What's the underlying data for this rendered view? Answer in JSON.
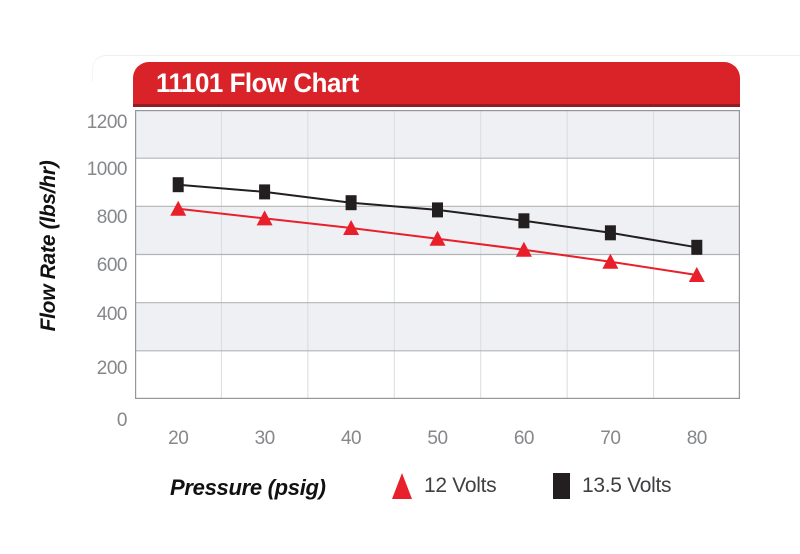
{
  "header": {
    "title": "11101 Flow Chart"
  },
  "colors": {
    "header_red": "#d92328",
    "header_red_dark": "#8c1f28",
    "series_red": "#e8202b",
    "series_black": "#231f20",
    "band_gray": "#eef0f3",
    "grid_major": "#b2b5b8",
    "grid_vertical": "#d9dcdf",
    "frame": "#94979b",
    "tick_text": "#85878a",
    "legend_text": "#3f4042"
  },
  "y_axis": {
    "title": "Flow Rate (lbs/hr)",
    "ticks": [
      "1200",
      "1000",
      "800",
      "600",
      "400",
      "200",
      "0"
    ]
  },
  "x_axis": {
    "title": "Pressure (psig)",
    "ticks": [
      "20",
      "30",
      "40",
      "50",
      "60",
      "70",
      "80"
    ]
  },
  "legend": [
    {
      "label": "12 Volts",
      "marker": "triangle",
      "color": "#e8202b"
    },
    {
      "label": "13.5 Volts",
      "marker": "square",
      "color": "#231f20"
    }
  ],
  "chart_data": {
    "type": "line",
    "title": "11101 Flow Chart",
    "xlabel": "Pressure (psig)",
    "ylabel": "Flow Rate (lbs/hr)",
    "categories": [
      20,
      30,
      40,
      50,
      60,
      70,
      80
    ],
    "series": [
      {
        "name": "12 Volts",
        "marker": "triangle",
        "color": "#e8202b",
        "values": [
          790,
          750,
          710,
          665,
          620,
          570,
          515
        ]
      },
      {
        "name": "13.5 Volts",
        "marker": "square",
        "color": "#231f20",
        "values": [
          890,
          860,
          815,
          785,
          740,
          690,
          630
        ]
      }
    ],
    "ylim": [
      0,
      1200
    ],
    "y_gridline_step": 200,
    "grid": true,
    "plot_bands": "alternating-gray-white",
    "legend_position": "bottom"
  }
}
